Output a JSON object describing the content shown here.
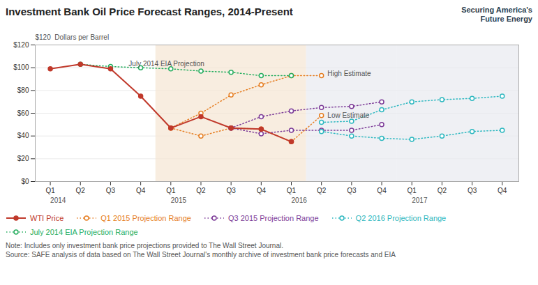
{
  "chart_data": {
    "type": "line",
    "title": "Investment Bank Oil Price Forecast Ranges, 2014-Present",
    "ylabel": "$120  Dollars per Barrel",
    "xlim": [
      -0.5,
      15.55
    ],
    "xticks": [
      {
        "value": 0,
        "label": "Q1"
      },
      {
        "value": 1,
        "label": "Q2"
      },
      {
        "value": 2,
        "label": "Q3"
      },
      {
        "value": 3,
        "label": "Q4"
      },
      {
        "value": 4,
        "label": "Q1"
      },
      {
        "value": 5,
        "label": "Q2"
      },
      {
        "value": 6,
        "label": "Q3"
      },
      {
        "value": 7,
        "label": "Q4"
      },
      {
        "value": 8,
        "label": "Q1"
      },
      {
        "value": 9,
        "label": "Q2"
      },
      {
        "value": 10,
        "label": "Q3"
      },
      {
        "value": 11,
        "label": "Q4"
      },
      {
        "value": 12,
        "label": "Q1"
      },
      {
        "value": 13,
        "label": "Q2"
      },
      {
        "value": 14,
        "label": "Q3"
      },
      {
        "value": 15,
        "label": "Q4"
      }
    ],
    "year_labels": [
      {
        "value": 0,
        "label": "2014"
      },
      {
        "value": 4,
        "label": "2015"
      },
      {
        "value": 8,
        "label": "2016"
      },
      {
        "value": 12,
        "label": "2017"
      }
    ],
    "ylim": [
      0,
      120
    ],
    "yticks": [
      {
        "value": 0,
        "label": "$0"
      },
      {
        "value": 20,
        "label": "$20"
      },
      {
        "value": 40,
        "label": "$40"
      },
      {
        "value": 60,
        "label": "$60"
      },
      {
        "value": 80,
        "label": "$80"
      },
      {
        "value": 100,
        "label": "$100"
      },
      {
        "value": 120,
        "label": "$120"
      }
    ],
    "grid": "y",
    "legend": "bottom",
    "series": [
      {
        "name": "WTI Price",
        "color": "#c0392b",
        "line_style": "solid",
        "marker": "circle",
        "x": [
          0,
          1,
          2,
          3,
          4,
          5,
          6,
          7,
          8
        ],
        "values": [
          99,
          103,
          99,
          75,
          47,
          57,
          47,
          46,
          35
        ]
      },
      {
        "name": "Q1 2015 Projection Range",
        "color": "#e67e22",
        "line_style": "dotted",
        "marker": "circle",
        "x": [
          4,
          5,
          6,
          7,
          8,
          9
        ],
        "values": [
          47,
          60,
          76,
          85,
          93,
          93
        ]
      },
      {
        "color": "#e67e22",
        "line_style": "dotted",
        "marker": "circle",
        "x": [
          4,
          5,
          6,
          7,
          8,
          9
        ],
        "values": [
          47,
          40,
          47,
          46,
          35,
          58
        ]
      },
      {
        "name": "Q3 2015 Projection Range",
        "color": "#7d3c98",
        "line_style": "dotted",
        "marker": "circle",
        "x": [
          6,
          7,
          8,
          9,
          10,
          11
        ],
        "values": [
          47,
          57,
          62,
          65,
          66,
          70
        ]
      },
      {
        "color": "#7d3c98",
        "line_style": "dotted",
        "marker": "circle",
        "x": [
          6,
          7,
          8,
          9,
          10,
          11
        ],
        "values": [
          47,
          42,
          45,
          45,
          45,
          50
        ]
      },
      {
        "name": "Q2 2016 Projection Range",
        "color": "#2eb8c0",
        "line_style": "dotted",
        "marker": "circle",
        "x": [
          9,
          10,
          11,
          12,
          13,
          14,
          15
        ],
        "values": [
          52,
          53,
          63,
          70,
          72,
          73,
          75
        ]
      },
      {
        "color": "#2eb8c0",
        "line_style": "dotted",
        "marker": "circle",
        "x": [
          9,
          10,
          11,
          12,
          13,
          14,
          15
        ],
        "values": [
          44,
          40,
          38,
          37,
          40,
          44,
          45
        ]
      },
      {
        "name": "July 2014 EIA Projection Range",
        "color": "#27ae60",
        "line_style": "dotted",
        "marker": "circle",
        "x": [
          1,
          2,
          3,
          4,
          5,
          6,
          7,
          8
        ],
        "values": [
          103,
          101,
          100,
          99,
          97,
          96,
          93,
          93
        ]
      }
    ],
    "spans": [
      {
        "x_start": 3.5,
        "x_end": 8.5,
        "color": "#f5e6d3"
      },
      {
        "x_start": 8.5,
        "x_end": 11.5,
        "color": "#e8eaf0"
      },
      {
        "x_start": 11.5,
        "x_end": 15.55,
        "color": "#e8eaf0"
      }
    ],
    "annotations": [
      {
        "x": 2.6,
        "y": 103,
        "text": "July 2014 EIA Projection"
      },
      {
        "x": 9.2,
        "y": 95,
        "text": "High Estimate"
      },
      {
        "x": 9.2,
        "y": 58,
        "text": "Low Estimate"
      }
    ],
    "notes": [
      "Note: Includes only investment bank price projections provided to The Wall Street Journal.",
      "Source: SAFE analysis of data based on The Wall Street Journal's monthly archive of investment bank price forecasts and EIA"
    ],
    "logo": [
      "Securing America's",
      "Future Energy"
    ]
  }
}
